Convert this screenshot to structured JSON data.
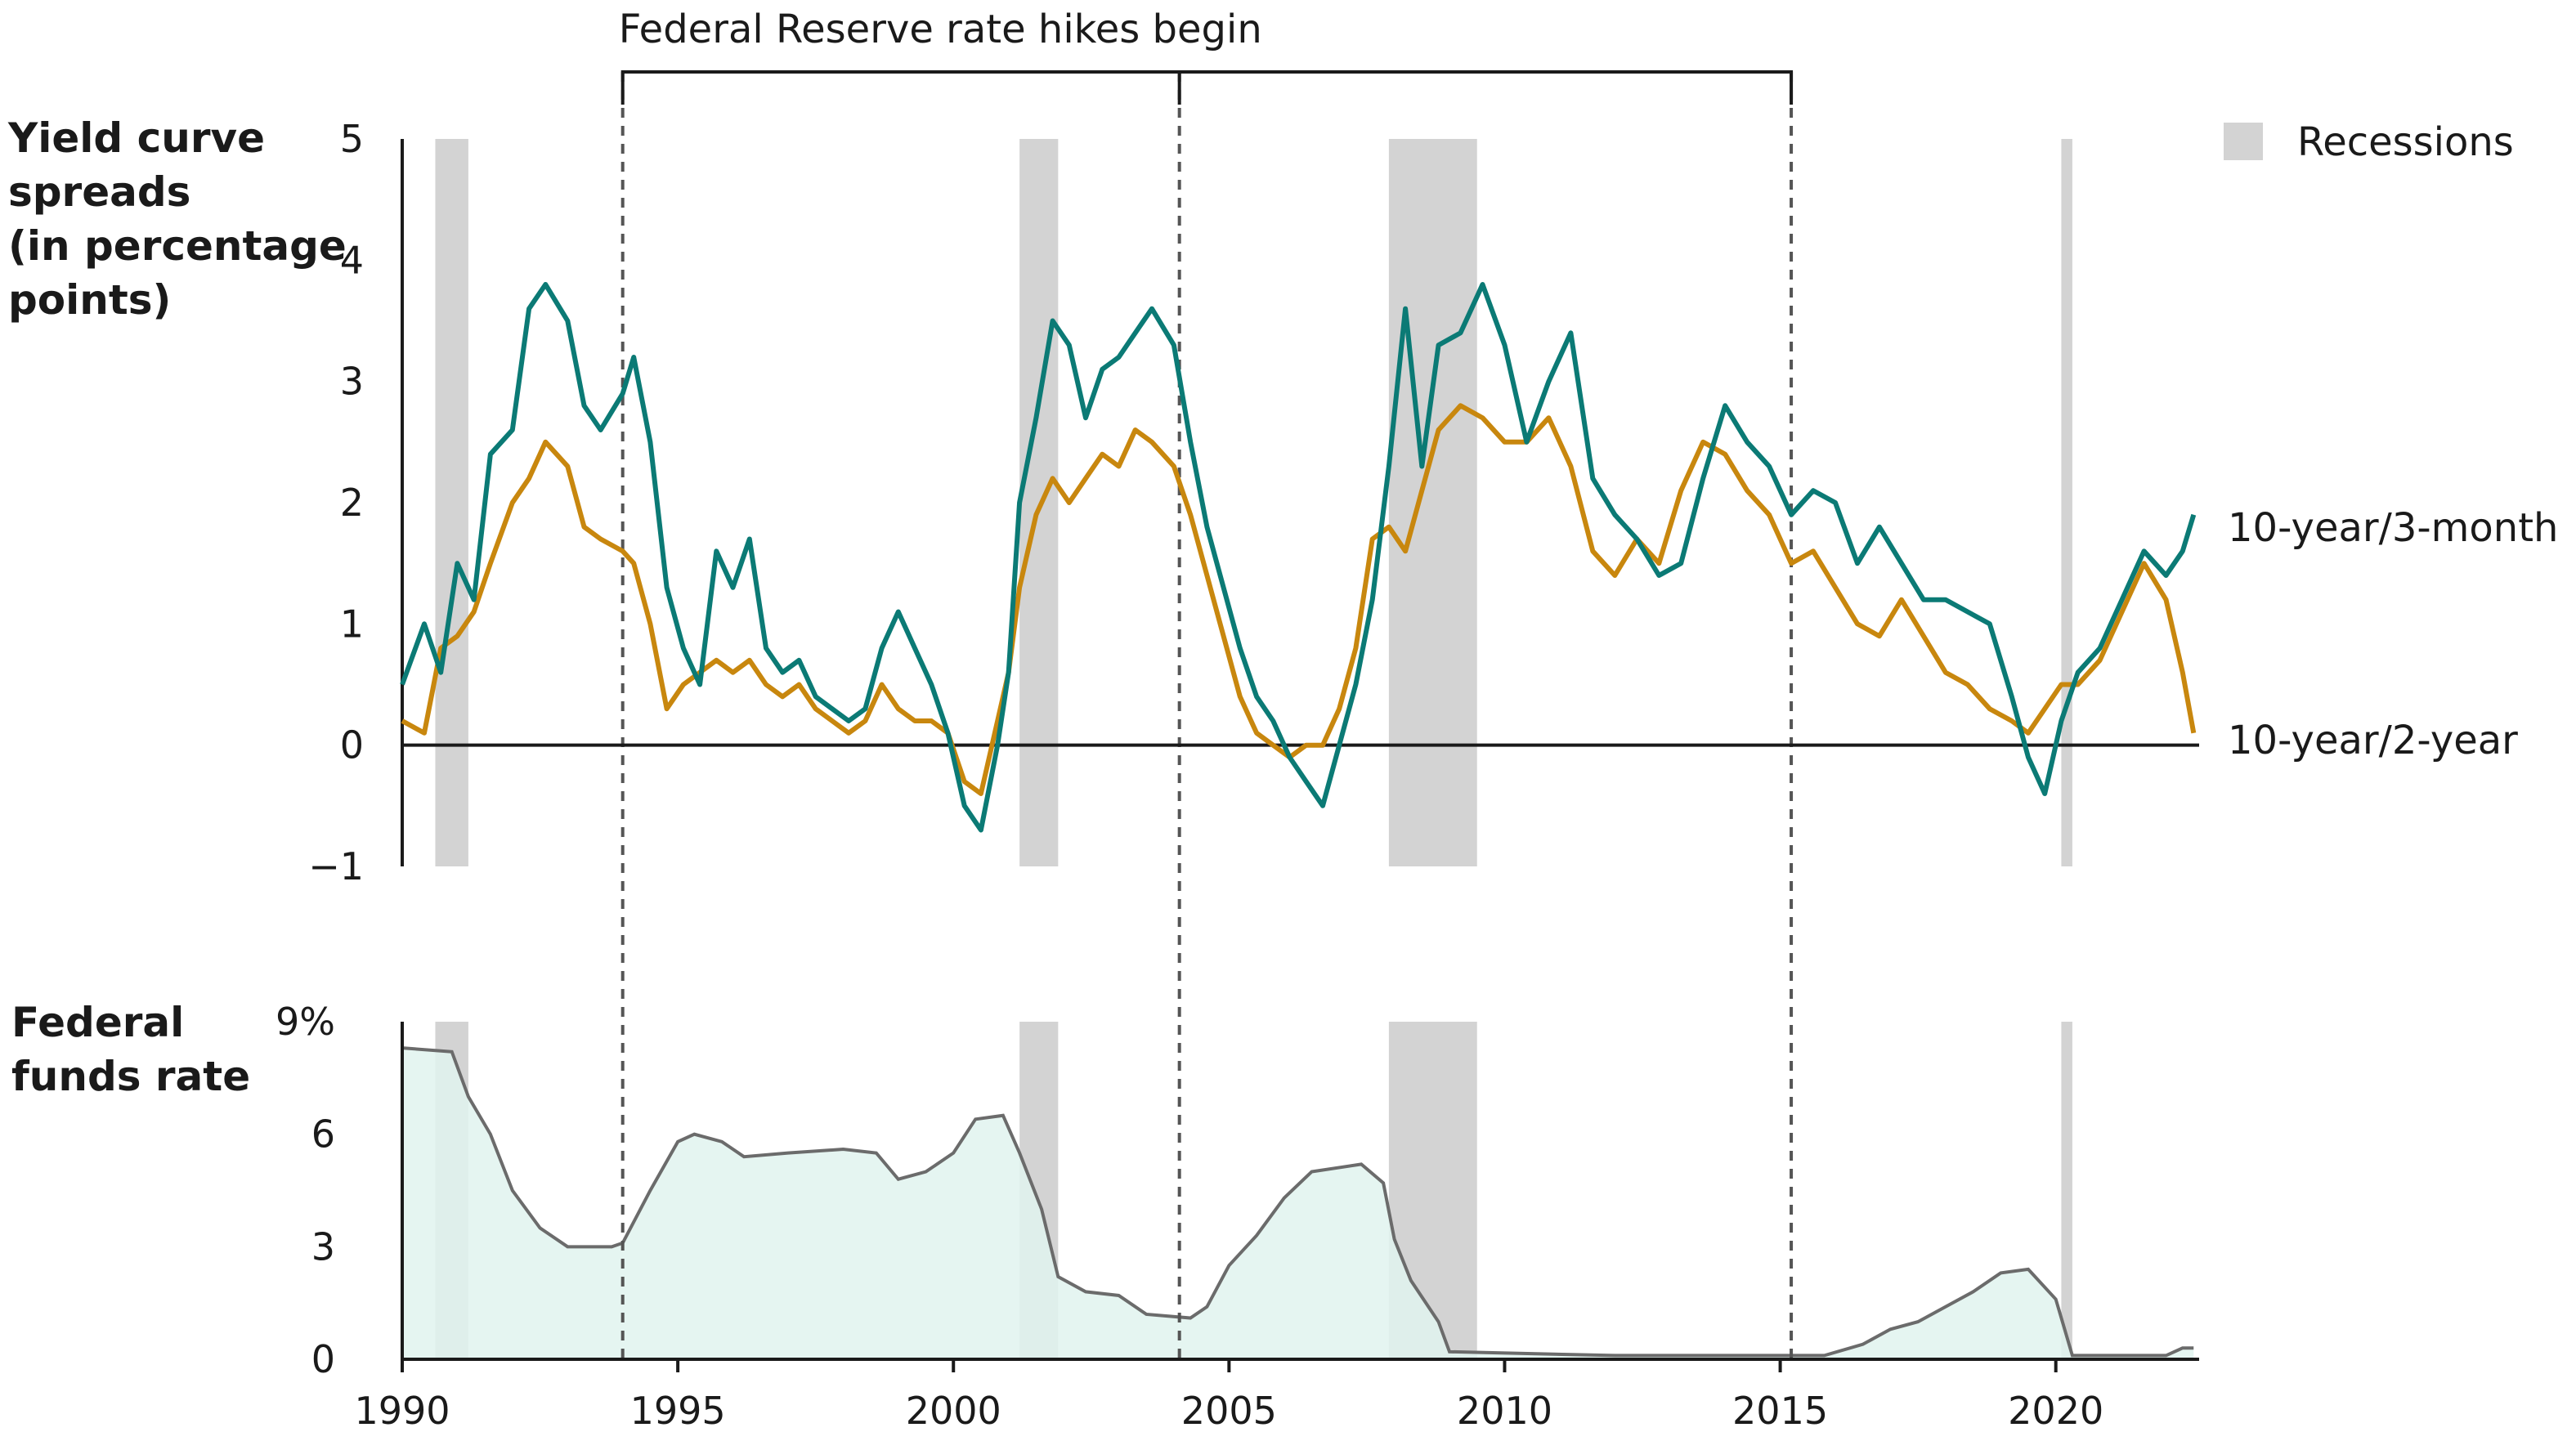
{
  "annotation": {
    "rate_hikes": "Federal Reserve rate hikes begin",
    "hike_years": [
      1994,
      2004.1,
      2015.2
    ]
  },
  "legend": {
    "recessions": "Recessions",
    "recession_color": "#d3d3d3"
  },
  "recessions": [
    [
      1990.6,
      1991.2
    ],
    [
      2001.2,
      2001.9
    ],
    [
      2007.9,
      2009.5
    ],
    [
      2020.1,
      2020.3
    ]
  ],
  "colors": {
    "ten_three_month": "#0b7a75",
    "ten_two_year": "#c8870e",
    "fed_funds_fill": "#e0f3ef",
    "fed_funds_line": "#6b6b6b"
  },
  "chart_data": [
    {
      "type": "line",
      "ylabel": "Yield curve spreads (in percentage points)",
      "ylabel_lines": [
        "Yield curve",
        "spreads",
        "(in percentage",
        "points)"
      ],
      "ylim": [
        -1,
        5
      ],
      "yticks": [
        "5",
        "4",
        "3",
        "2",
        "1",
        "0",
        "−1"
      ],
      "xlim": [
        1990,
        2022.6
      ],
      "series": [
        {
          "name": "10-year/3-month",
          "x": [
            1990.0,
            1990.4,
            1990.7,
            1991.0,
            1991.3,
            1991.6,
            1992.0,
            1992.3,
            1992.6,
            1993.0,
            1993.3,
            1993.6,
            1994.0,
            1994.2,
            1994.5,
            1994.8,
            1995.1,
            1995.4,
            1995.7,
            1996.0,
            1996.3,
            1996.6,
            1996.9,
            1997.2,
            1997.5,
            1997.8,
            1998.1,
            1998.4,
            1998.7,
            1999.0,
            1999.3,
            1999.6,
            1999.9,
            2000.2,
            2000.5,
            2000.8,
            2001.0,
            2001.2,
            2001.5,
            2001.8,
            2002.1,
            2002.4,
            2002.7,
            2003.0,
            2003.3,
            2003.6,
            2004.0,
            2004.3,
            2004.6,
            2004.9,
            2005.2,
            2005.5,
            2005.8,
            2006.1,
            2006.4,
            2006.7,
            2007.0,
            2007.3,
            2007.6,
            2007.9,
            2008.2,
            2008.5,
            2008.8,
            2009.2,
            2009.6,
            2010.0,
            2010.4,
            2010.8,
            2011.2,
            2011.6,
            2012.0,
            2012.4,
            2012.8,
            2013.2,
            2013.6,
            2014.0,
            2014.4,
            2014.8,
            2015.2,
            2015.6,
            2016.0,
            2016.4,
            2016.8,
            2017.2,
            2017.6,
            2018.0,
            2018.4,
            2018.8,
            2019.2,
            2019.5,
            2019.8,
            2020.1,
            2020.4,
            2020.8,
            2021.2,
            2021.6,
            2022.0,
            2022.3,
            2022.5
          ],
          "y": [
            0.5,
            1.0,
            0.6,
            1.5,
            1.2,
            2.4,
            2.6,
            3.6,
            3.8,
            3.5,
            2.8,
            2.6,
            2.9,
            3.2,
            2.5,
            1.3,
            0.8,
            0.5,
            1.6,
            1.3,
            1.7,
            0.8,
            0.6,
            0.7,
            0.4,
            0.3,
            0.2,
            0.3,
            0.8,
            1.1,
            0.8,
            0.5,
            0.1,
            -0.5,
            -0.7,
            0.0,
            0.6,
            2.0,
            2.7,
            3.5,
            3.3,
            2.7,
            3.1,
            3.2,
            3.4,
            3.6,
            3.3,
            2.5,
            1.8,
            1.3,
            0.8,
            0.4,
            0.2,
            -0.1,
            -0.3,
            -0.5,
            0.0,
            0.5,
            1.2,
            2.3,
            3.6,
            2.3,
            3.3,
            3.4,
            3.8,
            3.3,
            2.5,
            3.0,
            3.4,
            2.2,
            1.9,
            1.7,
            1.4,
            1.5,
            2.2,
            2.8,
            2.5,
            2.3,
            1.9,
            2.1,
            2.0,
            1.5,
            1.8,
            1.5,
            1.2,
            1.2,
            1.1,
            1.0,
            0.4,
            -0.1,
            -0.4,
            0.2,
            0.6,
            0.8,
            1.2,
            1.6,
            1.4,
            1.6,
            1.9
          ]
        },
        {
          "name": "10-year/2-year",
          "x": [
            1990.0,
            1990.4,
            1990.7,
            1991.0,
            1991.3,
            1991.6,
            1992.0,
            1992.3,
            1992.6,
            1993.0,
            1993.3,
            1993.6,
            1994.0,
            1994.2,
            1994.5,
            1994.8,
            1995.1,
            1995.4,
            1995.7,
            1996.0,
            1996.3,
            1996.6,
            1996.9,
            1997.2,
            1997.5,
            1997.8,
            1998.1,
            1998.4,
            1998.7,
            1999.0,
            1999.3,
            1999.6,
            1999.9,
            2000.2,
            2000.5,
            2000.8,
            2001.0,
            2001.2,
            2001.5,
            2001.8,
            2002.1,
            2002.4,
            2002.7,
            2003.0,
            2003.3,
            2003.6,
            2004.0,
            2004.3,
            2004.6,
            2004.9,
            2005.2,
            2005.5,
            2005.8,
            2006.1,
            2006.4,
            2006.7,
            2007.0,
            2007.3,
            2007.6,
            2007.9,
            2008.2,
            2008.5,
            2008.8,
            2009.2,
            2009.6,
            2010.0,
            2010.4,
            2010.8,
            2011.2,
            2011.6,
            2012.0,
            2012.4,
            2012.8,
            2013.2,
            2013.6,
            2014.0,
            2014.4,
            2014.8,
            2015.2,
            2015.6,
            2016.0,
            2016.4,
            2016.8,
            2017.2,
            2017.6,
            2018.0,
            2018.4,
            2018.8,
            2019.2,
            2019.5,
            2019.8,
            2020.1,
            2020.4,
            2020.8,
            2021.2,
            2021.6,
            2022.0,
            2022.3,
            2022.5
          ],
          "y": [
            0.2,
            0.1,
            0.8,
            0.9,
            1.1,
            1.5,
            2.0,
            2.2,
            2.5,
            2.3,
            1.8,
            1.7,
            1.6,
            1.5,
            1.0,
            0.3,
            0.5,
            0.6,
            0.7,
            0.6,
            0.7,
            0.5,
            0.4,
            0.5,
            0.3,
            0.2,
            0.1,
            0.2,
            0.5,
            0.3,
            0.2,
            0.2,
            0.1,
            -0.3,
            -0.4,
            0.2,
            0.6,
            1.3,
            1.9,
            2.2,
            2.0,
            2.2,
            2.4,
            2.3,
            2.6,
            2.5,
            2.3,
            1.9,
            1.4,
            0.9,
            0.4,
            0.1,
            0.0,
            -0.1,
            0.0,
            0.0,
            0.3,
            0.8,
            1.7,
            1.8,
            1.6,
            2.1,
            2.6,
            2.8,
            2.7,
            2.5,
            2.5,
            2.7,
            2.3,
            1.6,
            1.4,
            1.7,
            1.5,
            2.1,
            2.5,
            2.4,
            2.1,
            1.9,
            1.5,
            1.6,
            1.3,
            1.0,
            0.9,
            1.2,
            0.9,
            0.6,
            0.5,
            0.3,
            0.2,
            0.1,
            0.3,
            0.5,
            0.5,
            0.7,
            1.1,
            1.5,
            1.2,
            0.6,
            0.1
          ]
        }
      ]
    },
    {
      "type": "area",
      "ylabel": "Federal funds rate",
      "ylabel_lines": [
        "Federal",
        "funds rate"
      ],
      "ylim": [
        0,
        9
      ],
      "yticks": [
        {
          "label": "9%",
          "value": 9
        },
        {
          "label": "6",
          "value": 6
        },
        {
          "label": "3",
          "value": 3
        },
        {
          "label": "0",
          "value": 0
        }
      ],
      "xlim": [
        1990,
        2022.6
      ],
      "xticks": [
        "1990",
        "1995",
        "2000",
        "2005",
        "2010",
        "2015",
        "2020"
      ],
      "x": [
        1990.0,
        1990.9,
        1991.2,
        1991.6,
        1992.0,
        1992.5,
        1993.0,
        1993.8,
        1994.0,
        1994.5,
        1995.0,
        1995.3,
        1995.8,
        1996.2,
        1997.0,
        1998.0,
        1998.6,
        1999.0,
        1999.5,
        2000.0,
        2000.4,
        2000.9,
        2001.2,
        2001.6,
        2001.9,
        2002.4,
        2003.0,
        2003.5,
        2004.3,
        2004.6,
        2005.0,
        2005.5,
        2006.0,
        2006.5,
        2007.4,
        2007.8,
        2008.0,
        2008.3,
        2008.8,
        2009.0,
        2012.0,
        2015.8,
        2016.5,
        2017.0,
        2017.5,
        2018.0,
        2018.5,
        2019.0,
        2019.5,
        2020.0,
        2020.2,
        2020.3,
        2022.0,
        2022.3,
        2022.5
      ],
      "values": [
        8.3,
        8.2,
        7.0,
        6.0,
        4.5,
        3.5,
        3.0,
        3.0,
        3.1,
        4.5,
        5.8,
        6.0,
        5.8,
        5.4,
        5.5,
        5.6,
        5.5,
        4.8,
        5.0,
        5.5,
        6.4,
        6.5,
        5.5,
        4.0,
        2.2,
        1.8,
        1.7,
        1.2,
        1.1,
        1.4,
        2.5,
        3.3,
        4.3,
        5.0,
        5.2,
        4.7,
        3.2,
        2.1,
        1.0,
        0.2,
        0.1,
        0.1,
        0.4,
        0.8,
        1.0,
        1.4,
        1.8,
        2.3,
        2.4,
        1.6,
        0.6,
        0.1,
        0.1,
        0.3,
        0.3
      ]
    }
  ]
}
